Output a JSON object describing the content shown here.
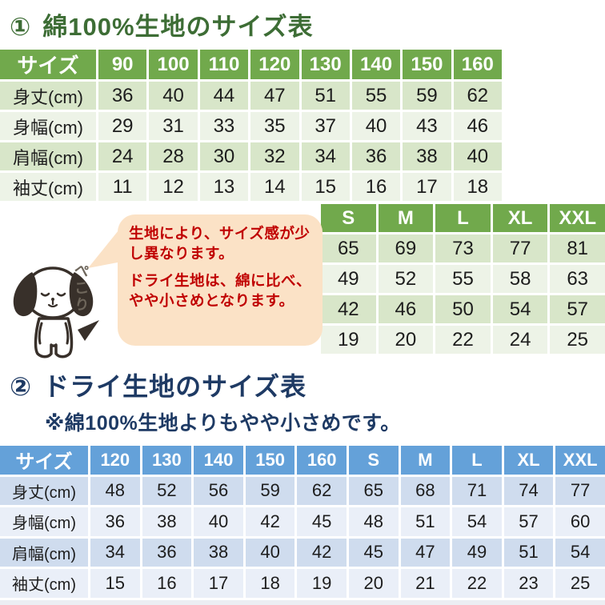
{
  "theme": {
    "green_header": "#71a94c",
    "green_band_dark": "#d8e6c9",
    "green_band_light": "#edf3e7",
    "green_title": "#3d6d35",
    "blue_header": "#64a1d9",
    "blue_band_dark": "#cfdcee",
    "blue_band_light": "#eaeff8",
    "navy_title": "#1e3a64",
    "red_text": "#c00000",
    "bubble_bg": "#fbe2c6",
    "dog_line": "#38302a",
    "peko_color": "#6e665b",
    "cell_text": "#1d1d1d"
  },
  "section1": {
    "number": "①",
    "title": "綿100%生地のサイズ表",
    "kids_table": {
      "header": [
        "サイズ",
        "90",
        "100",
        "110",
        "120",
        "130",
        "140",
        "150",
        "160"
      ],
      "rows": [
        {
          "label": "身丈(cm)",
          "values": [
            "36",
            "40",
            "44",
            "47",
            "51",
            "55",
            "59",
            "62"
          ]
        },
        {
          "label": "身幅(cm)",
          "values": [
            "29",
            "31",
            "33",
            "35",
            "37",
            "40",
            "43",
            "46"
          ]
        },
        {
          "label": "肩幅(cm)",
          "values": [
            "24",
            "28",
            "30",
            "32",
            "34",
            "36",
            "38",
            "40"
          ]
        },
        {
          "label": "袖丈(cm)",
          "values": [
            "11",
            "12",
            "13",
            "14",
            "15",
            "16",
            "17",
            "18"
          ]
        }
      ]
    },
    "adult_table": {
      "header": [
        "S",
        "M",
        "L",
        "XL",
        "XXL"
      ],
      "rows": [
        [
          "65",
          "69",
          "73",
          "77",
          "81"
        ],
        [
          "49",
          "52",
          "55",
          "58",
          "63"
        ],
        [
          "42",
          "46",
          "50",
          "54",
          "57"
        ],
        [
          "19",
          "20",
          "22",
          "24",
          "25"
        ]
      ]
    }
  },
  "callout": {
    "line1": "生地により、サイズ感が少し異なります。",
    "line2": "ドライ生地は、綿に比べ、やや小さめとなります。",
    "dog_caption_chars": [
      "ぺ",
      "こ",
      "り"
    ]
  },
  "section2": {
    "number": "②",
    "title": "ドライ生地のサイズ表",
    "subtitle": "※綿100%生地よりもやや小さめです。",
    "table": {
      "header": [
        "サイズ",
        "120",
        "130",
        "140",
        "150",
        "160",
        "S",
        "M",
        "L",
        "XL",
        "XXL"
      ],
      "rows": [
        {
          "label": "身丈(cm)",
          "values": [
            "48",
            "52",
            "56",
            "59",
            "62",
            "65",
            "68",
            "71",
            "74",
            "77"
          ]
        },
        {
          "label": "身幅(cm)",
          "values": [
            "36",
            "38",
            "40",
            "42",
            "45",
            "48",
            "51",
            "54",
            "57",
            "60"
          ]
        },
        {
          "label": "肩幅(cm)",
          "values": [
            "34",
            "36",
            "38",
            "40",
            "42",
            "45",
            "47",
            "49",
            "51",
            "54"
          ]
        },
        {
          "label": "袖丈(cm)",
          "values": [
            "15",
            "16",
            "17",
            "18",
            "19",
            "20",
            "21",
            "22",
            "23",
            "25"
          ]
        }
      ]
    }
  }
}
